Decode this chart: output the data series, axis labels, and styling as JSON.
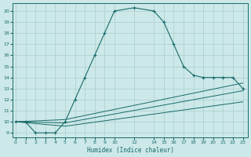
{
  "title": "",
  "xlabel": "Humidex (Indice chaleur)",
  "bg_color": "#cce8e8",
  "grid_color": "#aacece",
  "line_color": "#1a6b6b",
  "xticks": [
    0,
    1,
    2,
    3,
    4,
    5,
    6,
    7,
    8,
    9,
    10,
    12,
    14,
    15,
    16,
    17,
    18,
    19,
    20,
    21,
    22,
    23
  ],
  "yticks": [
    9,
    10,
    11,
    12,
    13,
    14,
    15,
    16,
    17,
    18,
    19,
    20
  ],
  "xlim": [
    -0.3,
    23.5
  ],
  "ylim": [
    8.6,
    20.7
  ],
  "main_x": [
    0,
    1,
    2,
    3,
    4,
    5,
    6,
    7,
    8,
    9,
    10,
    12,
    14,
    15,
    16,
    17,
    18,
    19,
    20,
    21,
    22,
    23
  ],
  "main_y": [
    10.0,
    10.0,
    9.0,
    9.0,
    9.0,
    10.0,
    12.0,
    14.0,
    16.0,
    18.0,
    20.0,
    20.3,
    20.0,
    19.0,
    17.0,
    15.0,
    14.2,
    14.0,
    14.0,
    14.0,
    14.0,
    13.0
  ],
  "line2_x": [
    0,
    5,
    23
  ],
  "line2_y": [
    10.0,
    10.2,
    13.5
  ],
  "line3_x": [
    0,
    5,
    23
  ],
  "line3_y": [
    10.0,
    9.9,
    12.8
  ],
  "line4_x": [
    0,
    5,
    23
  ],
  "line4_y": [
    10.0,
    9.6,
    11.8
  ]
}
